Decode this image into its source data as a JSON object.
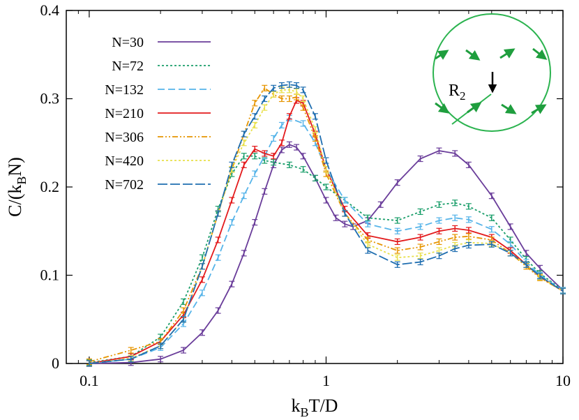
{
  "chart_data": {
    "type": "line",
    "xlabel": {
      "main": "k",
      "sub": "B",
      "rest": "T/D"
    },
    "ylabel": {
      "main": "C/(k",
      "sub": "B",
      "rest": "N)"
    },
    "x_scale": "log",
    "xlim": [
      0.08,
      10
    ],
    "ylim": [
      0,
      0.4
    ],
    "x_ticks": [
      {
        "value": 0.1,
        "label": "0.1"
      },
      {
        "value": 1,
        "label": "1"
      },
      {
        "value": 10,
        "label": "10"
      }
    ],
    "y_ticks": [
      {
        "value": 0,
        "label": "0"
      },
      {
        "value": 0.1,
        "label": "0.1"
      },
      {
        "value": 0.2,
        "label": "0.2"
      },
      {
        "value": 0.3,
        "label": "0.3"
      },
      {
        "value": 0.4,
        "label": "0.4"
      }
    ],
    "legend_position": "top-left",
    "grid": false,
    "series": [
      {
        "name": "N=30",
        "color": "#6a3d9a",
        "dash": "",
        "x": [
          0.1,
          0.15,
          0.2,
          0.25,
          0.3,
          0.35,
          0.4,
          0.45,
          0.5,
          0.55,
          0.6,
          0.65,
          0.7,
          0.75,
          0.8,
          0.9,
          1.0,
          1.1,
          1.2,
          1.3,
          1.5,
          1.7,
          2.0,
          2.5,
          3.0,
          3.5,
          4.0,
          5.0,
          6.0,
          7.0,
          8.0,
          10.0
        ],
        "y": [
          0.0,
          0.001,
          0.005,
          0.015,
          0.035,
          0.06,
          0.09,
          0.125,
          0.16,
          0.195,
          0.225,
          0.242,
          0.248,
          0.245,
          0.235,
          0.21,
          0.185,
          0.165,
          0.158,
          0.155,
          0.162,
          0.18,
          0.205,
          0.232,
          0.241,
          0.238,
          0.225,
          0.19,
          0.155,
          0.125,
          0.108,
          0.083
        ]
      },
      {
        "name": "N=72",
        "color": "#1a9e6a",
        "dash": "3,3",
        "x": [
          0.1,
          0.15,
          0.2,
          0.25,
          0.3,
          0.35,
          0.4,
          0.45,
          0.5,
          0.55,
          0.6,
          0.7,
          0.8,
          0.9,
          1.0,
          1.2,
          1.5,
          2.0,
          2.5,
          3.0,
          3.5,
          4.0,
          5.0,
          6.0,
          7.0,
          8.0,
          10.0
        ],
        "y": [
          0.001,
          0.008,
          0.03,
          0.07,
          0.12,
          0.175,
          0.215,
          0.235,
          0.235,
          0.23,
          0.228,
          0.225,
          0.22,
          0.21,
          0.2,
          0.185,
          0.165,
          0.162,
          0.172,
          0.18,
          0.182,
          0.178,
          0.165,
          0.14,
          0.118,
          0.102,
          0.083
        ]
      },
      {
        "name": "N=132",
        "color": "#56b4e9",
        "dash": "10,5",
        "x": [
          0.1,
          0.15,
          0.2,
          0.25,
          0.3,
          0.35,
          0.4,
          0.45,
          0.5,
          0.55,
          0.6,
          0.65,
          0.7,
          0.8,
          0.9,
          1.0,
          1.2,
          1.5,
          2.0,
          2.5,
          3.0,
          3.5,
          4.0,
          5.0,
          6.0,
          7.0,
          8.0,
          10.0
        ],
        "y": [
          0.0,
          0.005,
          0.018,
          0.045,
          0.08,
          0.12,
          0.16,
          0.19,
          0.215,
          0.235,
          0.255,
          0.27,
          0.278,
          0.272,
          0.25,
          0.22,
          0.185,
          0.158,
          0.15,
          0.155,
          0.162,
          0.165,
          0.163,
          0.152,
          0.135,
          0.115,
          0.1,
          0.083
        ]
      },
      {
        "name": "N=210",
        "color": "#e31a1c",
        "dash": "",
        "x": [
          0.1,
          0.15,
          0.2,
          0.25,
          0.3,
          0.35,
          0.4,
          0.45,
          0.5,
          0.55,
          0.6,
          0.65,
          0.7,
          0.75,
          0.8,
          0.9,
          1.0,
          1.2,
          1.5,
          2.0,
          2.5,
          3.0,
          3.5,
          4.0,
          5.0,
          6.0,
          7.0,
          8.0,
          10.0
        ],
        "y": [
          0.0,
          0.008,
          0.025,
          0.055,
          0.095,
          0.14,
          0.185,
          0.225,
          0.243,
          0.238,
          0.235,
          0.25,
          0.28,
          0.298,
          0.295,
          0.26,
          0.22,
          0.175,
          0.145,
          0.138,
          0.143,
          0.15,
          0.153,
          0.151,
          0.143,
          0.128,
          0.112,
          0.098,
          0.082
        ]
      },
      {
        "name": "N=306",
        "color": "#e69500",
        "dash": "8,3,2,3,2,3",
        "x": [
          0.1,
          0.15,
          0.2,
          0.25,
          0.3,
          0.35,
          0.4,
          0.45,
          0.5,
          0.55,
          0.6,
          0.65,
          0.7,
          0.75,
          0.8,
          0.9,
          1.0,
          1.2,
          1.5,
          2.0,
          2.5,
          3.0,
          3.5,
          4.0,
          5.0,
          6.0,
          7.0,
          8.0,
          10.0
        ],
        "y": [
          0.002,
          0.015,
          0.025,
          0.06,
          0.11,
          0.17,
          0.22,
          0.26,
          0.295,
          0.312,
          0.305,
          0.3,
          0.3,
          0.302,
          0.29,
          0.255,
          0.215,
          0.17,
          0.14,
          0.128,
          0.132,
          0.138,
          0.143,
          0.144,
          0.14,
          0.125,
          0.11,
          0.097,
          0.082
        ]
      },
      {
        "name": "N=420",
        "color": "#e8e04a",
        "dash": "3,3",
        "x": [
          0.1,
          0.15,
          0.2,
          0.25,
          0.3,
          0.35,
          0.4,
          0.45,
          0.5,
          0.55,
          0.6,
          0.65,
          0.7,
          0.75,
          0.8,
          0.9,
          1.0,
          1.2,
          1.5,
          2.0,
          2.5,
          3.0,
          3.5,
          4.0,
          5.0,
          6.0,
          7.0,
          8.0,
          10.0
        ],
        "y": [
          0.0,
          0.006,
          0.02,
          0.05,
          0.11,
          0.17,
          0.22,
          0.25,
          0.27,
          0.29,
          0.305,
          0.31,
          0.31,
          0.308,
          0.3,
          0.265,
          0.22,
          0.17,
          0.135,
          0.12,
          0.122,
          0.128,
          0.134,
          0.137,
          0.136,
          0.125,
          0.112,
          0.098,
          0.082
        ]
      },
      {
        "name": "N=702",
        "color": "#1f6eb0",
        "dash": "14,4",
        "x": [
          0.1,
          0.15,
          0.2,
          0.25,
          0.3,
          0.35,
          0.4,
          0.45,
          0.5,
          0.55,
          0.6,
          0.65,
          0.7,
          0.75,
          0.8,
          0.9,
          1.0,
          1.2,
          1.5,
          2.0,
          2.5,
          3.0,
          3.5,
          4.0,
          5.0,
          6.0,
          7.0,
          8.0,
          10.0
        ],
        "y": [
          0.0,
          0.005,
          0.02,
          0.05,
          0.11,
          0.17,
          0.225,
          0.26,
          0.28,
          0.3,
          0.312,
          0.315,
          0.316,
          0.315,
          0.31,
          0.28,
          0.23,
          0.17,
          0.128,
          0.112,
          0.115,
          0.122,
          0.13,
          0.134,
          0.135,
          0.125,
          0.112,
          0.099,
          0.082
        ]
      }
    ],
    "inset": {
      "label_main": "R",
      "label_sub": "2",
      "circle_color": "#2bb34f",
      "arrow_color": "#1f9e3e",
      "center_arrow_color": "#000000"
    }
  }
}
